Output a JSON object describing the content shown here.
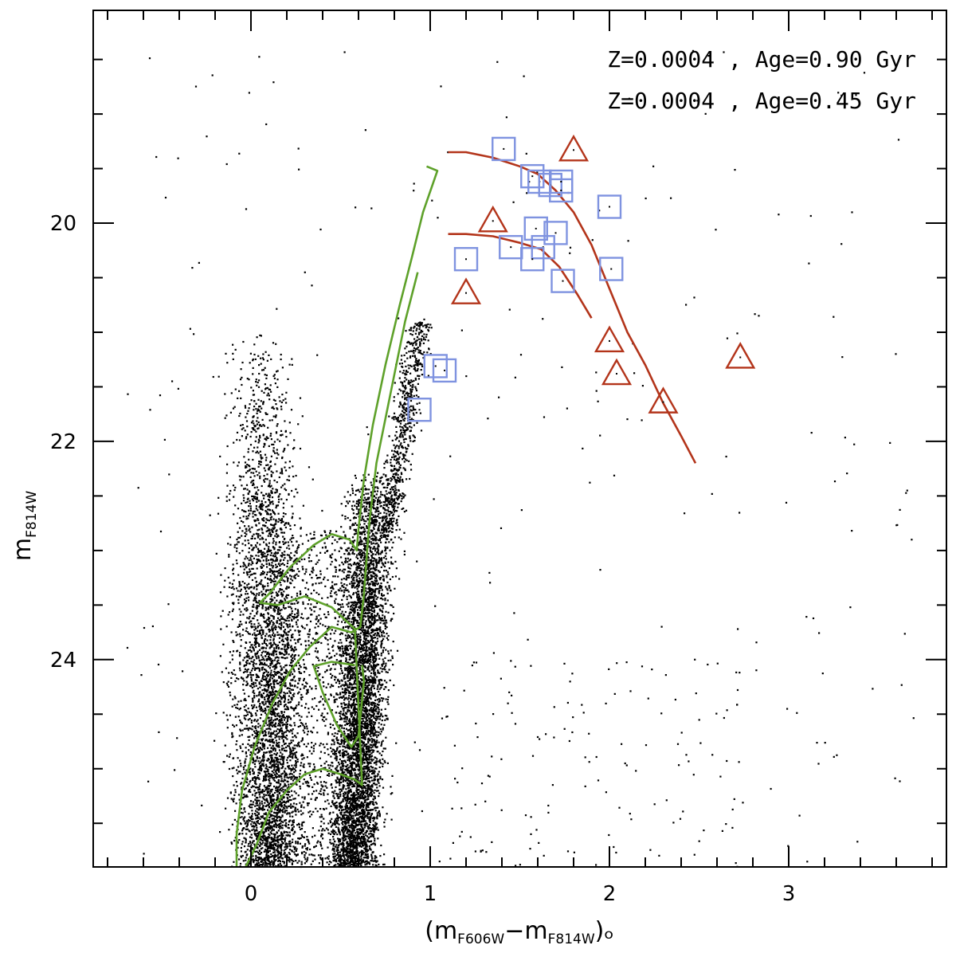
{
  "chart_data": {
    "type": "scatter",
    "xlabel_parts": {
      "open": "(m",
      "sub1": "F606W",
      "dash": "−m",
      "sub2": "F814W",
      "close": ")ₒ"
    },
    "ylabel_parts": {
      "main": "m",
      "sub": "F814W"
    },
    "xlim": [
      -0.88,
      3.88
    ],
    "ylim": [
      25.9,
      18.05
    ],
    "y_inverted": true,
    "x_ticks": [
      0,
      1,
      2,
      3
    ],
    "y_ticks": [
      20,
      22,
      24
    ],
    "legend_entries": [
      {
        "text": "Z=0.0004 , Age=0.90 Gyr",
        "marker": "square",
        "color": "#7f93e0"
      },
      {
        "text": "Z=0.0004 , Age=0.45 Gyr",
        "marker": "triangle",
        "color": "#b3341a"
      }
    ],
    "colors": {
      "points": "#000000",
      "young_isochrone": "#5ea12a",
      "old_isochrone": "#b3341a",
      "squares": "#7f93e0",
      "triangles": "#b3341a"
    },
    "field_stars_note": "dense black points: main sequence / blue plume at color -0.1 to 0.3, red giant branch clump at color 0.5 to 1.0 (m 22.5-25.9), sparse scatter elsewhere",
    "square_points": [
      {
        "x": 1.41,
        "y": 19.32
      },
      {
        "x": 1.57,
        "y": 19.57
      },
      {
        "x": 1.61,
        "y": 19.62
      },
      {
        "x": 1.67,
        "y": 19.65
      },
      {
        "x": 1.73,
        "y": 19.62
      },
      {
        "x": 1.73,
        "y": 19.7
      },
      {
        "x": 2.0,
        "y": 19.85
      },
      {
        "x": 1.59,
        "y": 20.05
      },
      {
        "x": 1.7,
        "y": 20.09
      },
      {
        "x": 1.45,
        "y": 20.22
      },
      {
        "x": 1.63,
        "y": 20.22
      },
      {
        "x": 1.57,
        "y": 20.33
      },
      {
        "x": 1.2,
        "y": 20.33
      },
      {
        "x": 2.01,
        "y": 20.42
      },
      {
        "x": 1.74,
        "y": 20.53
      },
      {
        "x": 1.03,
        "y": 21.31
      },
      {
        "x": 1.08,
        "y": 21.35
      },
      {
        "x": 0.94,
        "y": 21.71
      }
    ],
    "triangle_points": [
      {
        "x": 1.8,
        "y": 19.33
      },
      {
        "x": 1.35,
        "y": 19.98
      },
      {
        "x": 1.2,
        "y": 20.64
      },
      {
        "x": 2.0,
        "y": 21.08
      },
      {
        "x": 2.04,
        "y": 21.38
      },
      {
        "x": 2.73,
        "y": 21.23
      },
      {
        "x": 2.3,
        "y": 21.64
      }
    ],
    "old_isochrone_lines": [
      [
        [
          1.1,
          19.35
        ],
        [
          1.2,
          19.35
        ],
        [
          1.35,
          19.4
        ],
        [
          1.5,
          19.48
        ],
        [
          1.6,
          19.55
        ],
        [
          1.7,
          19.7
        ],
        [
          1.8,
          19.9
        ],
        [
          1.9,
          20.2
        ],
        [
          2.0,
          20.6
        ],
        [
          2.1,
          21.0
        ],
        [
          2.2,
          21.3
        ],
        [
          2.3,
          21.65
        ],
        [
          2.4,
          21.95
        ],
        [
          2.48,
          22.2
        ]
      ],
      [
        [
          1.1,
          20.1
        ],
        [
          1.2,
          20.1
        ],
        [
          1.35,
          20.12
        ],
        [
          1.5,
          20.18
        ],
        [
          1.62,
          20.24
        ],
        [
          1.72,
          20.4
        ],
        [
          1.82,
          20.65
        ],
        [
          1.9,
          20.87
        ]
      ]
    ],
    "young_isochrone_lines": [
      [
        [
          0.98,
          19.48
        ],
        [
          1.04,
          19.52
        ],
        [
          0.96,
          19.9
        ],
        [
          0.9,
          20.3
        ],
        [
          0.83,
          20.75
        ],
        [
          0.75,
          21.3
        ],
        [
          0.68,
          21.85
        ],
        [
          0.63,
          22.35
        ],
        [
          0.6,
          22.8
        ],
        [
          0.59,
          23.0
        ],
        [
          0.55,
          22.9
        ],
        [
          0.45,
          22.85
        ],
        [
          0.35,
          22.95
        ],
        [
          0.22,
          23.15
        ],
        [
          0.1,
          23.4
        ],
        [
          0.05,
          23.48
        ],
        [
          0.15,
          23.5
        ],
        [
          0.3,
          23.42
        ],
        [
          0.45,
          23.52
        ],
        [
          0.58,
          23.72
        ],
        [
          0.62,
          25.15
        ],
        [
          0.58,
          25.1
        ],
        [
          0.5,
          25.05
        ],
        [
          0.4,
          25.0
        ],
        [
          0.3,
          25.05
        ],
        [
          0.2,
          25.2
        ],
        [
          0.1,
          25.4
        ],
        [
          0.03,
          25.7
        ],
        [
          -0.03,
          25.9
        ]
      ],
      [
        [
          0.93,
          20.45
        ],
        [
          0.86,
          20.9
        ],
        [
          0.78,
          21.55
        ],
        [
          0.7,
          22.2
        ],
        [
          0.66,
          22.75
        ],
        [
          0.63,
          23.4
        ],
        [
          0.61,
          23.7
        ],
        [
          0.56,
          23.75
        ],
        [
          0.45,
          23.7
        ],
        [
          0.33,
          23.88
        ],
        [
          0.22,
          24.1
        ],
        [
          0.12,
          24.4
        ],
        [
          0.02,
          24.8
        ],
        [
          -0.05,
          25.2
        ],
        [
          -0.08,
          25.6
        ],
        [
          -0.08,
          25.9
        ]
      ],
      [
        [
          0.58,
          24.05
        ],
        [
          0.45,
          24.02
        ],
        [
          0.35,
          24.06
        ],
        [
          0.4,
          24.3
        ],
        [
          0.48,
          24.6
        ],
        [
          0.56,
          24.8
        ],
        [
          0.6,
          24.7
        ],
        [
          0.63,
          24.2
        ],
        [
          0.62,
          24.05
        ]
      ]
    ]
  }
}
